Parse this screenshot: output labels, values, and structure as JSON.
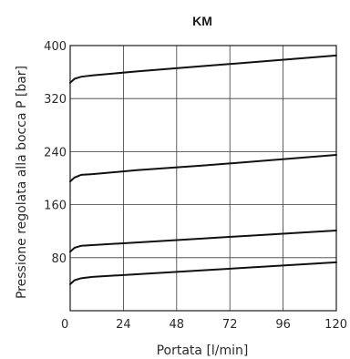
{
  "chart_data": {
    "type": "line",
    "title": "KM",
    "xlabel": "Portata [l/min]",
    "ylabel": "Pressione regolata alla bocca P [bar]",
    "xlim": [
      0,
      120
    ],
    "ylim": [
      0,
      400
    ],
    "x_ticks": [
      0,
      24,
      48,
      72,
      96,
      120
    ],
    "y_ticks": [
      80,
      160,
      240,
      320,
      400
    ],
    "x_tick_labels": [
      "0",
      "24",
      "48",
      "72",
      "96",
      "120"
    ],
    "y_tick_labels": [
      "80",
      "160",
      "240",
      "320",
      "400"
    ],
    "grid": true,
    "series": [
      {
        "x": [
          0,
          2,
          5,
          10,
          30,
          60,
          90,
          120
        ],
        "values": [
          344,
          350,
          353,
          355,
          361,
          369,
          377,
          385
        ]
      },
      {
        "x": [
          0,
          2,
          5,
          10,
          30,
          60,
          90,
          120
        ],
        "values": [
          195,
          201,
          205,
          206,
          212,
          219,
          227,
          235
        ]
      },
      {
        "x": [
          0,
          2,
          5,
          10,
          30,
          60,
          90,
          120
        ],
        "values": [
          89,
          95,
          98,
          99,
          103,
          109,
          115,
          121
        ]
      },
      {
        "x": [
          0,
          2,
          5,
          10,
          30,
          60,
          90,
          120
        ],
        "values": [
          40,
          46,
          49,
          51,
          55,
          61,
          67,
          73
        ]
      }
    ]
  }
}
